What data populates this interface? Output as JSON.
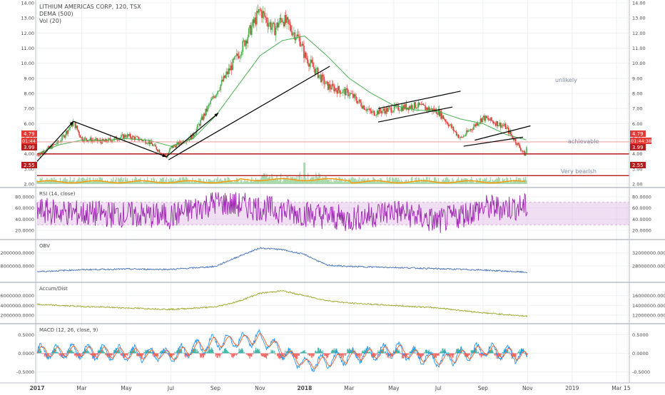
{
  "header": {
    "symbol_title": "LITHIUM AMERICAS CORP, 120, TSX",
    "dema_label": "DEMA (500)",
    "vol_label": "Vol (20)"
  },
  "annotations": [
    {
      "text": "unlikely",
      "price": 7.75
    },
    {
      "text": "achievable",
      "price": 4.25
    },
    {
      "text": "Very bearish",
      "price": 2.25
    }
  ],
  "badges": {
    "last_price": "4.79",
    "countdown": "01:44:38",
    "countdown_left": "01:44",
    "support_1": "3.99",
    "support_2": "2.55"
  },
  "chart_data": [
    {
      "type": "line",
      "panel": "price",
      "title": "LITHIUM AMERICAS CORP, 120, TSX",
      "ylim": [
        2.0,
        14.0
      ],
      "y_ticks": [
        "14.00",
        "13.00",
        "12.00",
        "11.00",
        "10.00",
        "9.00",
        "8.00",
        "7.00",
        "6.00",
        "5.00",
        "4.00",
        "3.00",
        "2.00"
      ],
      "series": [
        {
          "name": "LITHIUM AMERICAS CORP",
          "x": [
            "2017-01",
            "2017-02",
            "2017-02-20",
            "2017-03",
            "2017-04",
            "2017-05",
            "2017-06",
            "2017-06-25",
            "2017-07",
            "2017-08",
            "2017-09",
            "2017-10",
            "2017-11",
            "2017-11-20",
            "2017-12",
            "2017-12-25",
            "2018-01",
            "2018-02",
            "2018-03",
            "2018-04",
            "2018-05",
            "2018-06",
            "2018-07",
            "2018-08",
            "2018-09",
            "2018-10",
            "2018-10-28",
            "2018-11"
          ],
          "values": [
            3.9,
            4.8,
            6.1,
            5.0,
            4.8,
            5.2,
            4.8,
            3.8,
            4.4,
            5.2,
            8.0,
            10.5,
            13.5,
            12.2,
            13.0,
            11.5,
            10.5,
            8.5,
            8.0,
            6.7,
            7.0,
            7.2,
            6.8,
            5.0,
            6.4,
            5.8,
            3.9,
            4.79
          ]
        },
        {
          "name": "DEMA (500)",
          "x": [
            "2017-01",
            "2017-02",
            "2017-03",
            "2017-04",
            "2017-05",
            "2017-06",
            "2017-07",
            "2017-08",
            "2017-09",
            "2017-10",
            "2017-11",
            "2017-12",
            "2018-01",
            "2018-02",
            "2018-03",
            "2018-04",
            "2018-05",
            "2018-06",
            "2018-07",
            "2018-08",
            "2018-09",
            "2018-10",
            "2018-11"
          ],
          "values": [
            4.0,
            4.6,
            4.9,
            4.9,
            5.0,
            4.9,
            4.5,
            5.0,
            6.5,
            8.5,
            10.5,
            11.5,
            11.8,
            10.5,
            9.0,
            8.0,
            7.2,
            6.9,
            6.8,
            6.3,
            6.0,
            5.3,
            4.9
          ]
        }
      ],
      "horizontal_lines": [
        4.79,
        3.99,
        2.55
      ]
    },
    {
      "type": "line",
      "panel": "rsi",
      "title": "RSI (14, close)",
      "ylim": [
        10,
        90
      ],
      "band": [
        30,
        70
      ],
      "y_ticks": [
        "80.0000",
        "60.0000",
        "40.0000",
        "20.0000"
      ],
      "series": [
        {
          "name": "RSI (14, close)",
          "x": [
            "2017-01",
            "2017-03",
            "2017-05",
            "2017-07",
            "2017-09",
            "2017-11",
            "2018-01",
            "2018-03",
            "2018-05",
            "2018-07",
            "2018-09",
            "2018-11"
          ],
          "values": [
            55,
            50,
            48,
            45,
            70,
            60,
            50,
            40,
            55,
            35,
            60,
            62
          ]
        }
      ]
    },
    {
      "type": "line",
      "panel": "obv",
      "title": "OBV",
      "ylim": [
        24000000,
        35000000
      ],
      "y_ticks": [
        "32000000.0000",
        "28000000.0000"
      ],
      "series": [
        {
          "name": "OBV",
          "x": [
            "2017-01",
            "2017-03",
            "2017-05",
            "2017-07",
            "2017-09",
            "2017-10",
            "2017-11",
            "2017-12",
            "2018-01",
            "2018-02",
            "2018-03",
            "2018-05",
            "2018-07",
            "2018-09",
            "2018-11"
          ],
          "values": [
            26200000,
            26800000,
            27000000,
            26900000,
            27800000,
            30800000,
            33500000,
            33000000,
            31500000,
            28200000,
            27800000,
            27500000,
            27100000,
            26700000,
            26000000
          ]
        }
      ]
    },
    {
      "type": "line",
      "panel": "accum_dist",
      "title": "Accum/Dist",
      "ylim": [
        11000000,
        18000000
      ],
      "y_ticks": [
        "16000000.0000",
        "14000000.0000",
        "12000000.0000"
      ],
      "series": [
        {
          "name": "Accum/Dist",
          "x": [
            "2017-01",
            "2017-03",
            "2017-05",
            "2017-07",
            "2017-09",
            "2017-10",
            "2017-11",
            "2017-12",
            "2018-01",
            "2018-02",
            "2018-03",
            "2018-05",
            "2018-07",
            "2018-09",
            "2018-11"
          ],
          "values": [
            14200000,
            13800000,
            13500000,
            13200000,
            13700000,
            14800000,
            16500000,
            17000000,
            16000000,
            15000000,
            14500000,
            14000000,
            13500000,
            12500000,
            11800000
          ]
        }
      ]
    },
    {
      "type": "line",
      "panel": "macd",
      "title": "MACD (12, 26, close, 9)",
      "ylim": [
        -0.7,
        0.7
      ],
      "y_ticks": [
        "0.5000",
        "0.0000",
        "-0.5000"
      ],
      "series": [
        {
          "name": "MACD (12, 26, close, 9)",
          "x": [
            "2017-01",
            "2017-03",
            "2017-05",
            "2017-07",
            "2017-09",
            "2017-11",
            "2018-01",
            "2018-03",
            "2018-05",
            "2018-07",
            "2018-09",
            "2018-11"
          ],
          "values": [
            0.05,
            0.05,
            0.0,
            -0.05,
            0.3,
            0.4,
            -0.3,
            -0.1,
            0.1,
            -0.2,
            0.1,
            -0.1
          ]
        }
      ]
    }
  ],
  "time_axis": {
    "ticks": [
      "2017",
      "Mar",
      "May",
      "Jul",
      "Sep",
      "Nov",
      "2018",
      "Mar",
      "May",
      "Jul",
      "Sep",
      "Nov",
      "2019",
      "Mar",
      "15"
    ]
  },
  "colors": {
    "price_up": "#4caf50",
    "price_down": "#e53935",
    "dema": "#4caf50",
    "volume": "#a5d6a7",
    "volume_ma": "#ff9800",
    "rsi": "#9c27b0",
    "rsi_band": "#e1bee7",
    "obv": "#3f6db5",
    "accum_dist": "#9aa521",
    "macd": "#2196f3",
    "macd_signal": "#ff5722",
    "support_line": "#b71c1c",
    "last_price_line": "#ef9a9a",
    "annotation_text": "#7d8aa5"
  }
}
